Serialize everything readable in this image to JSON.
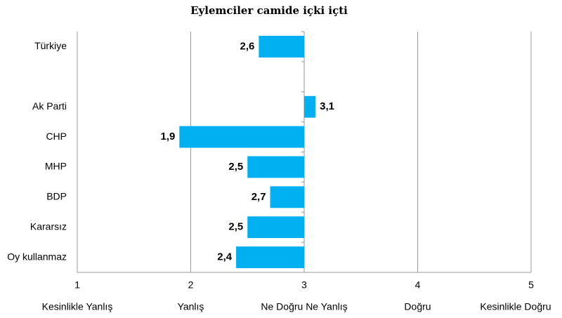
{
  "chart_data": {
    "type": "bar",
    "orientation": "horizontal",
    "title": "Eylemciler camide içki içti",
    "categories": [
      "Türkiye",
      null,
      "Ak Parti",
      "CHP",
      "MHP",
      "BDP",
      "Kararsız",
      "Oy kullanmaz"
    ],
    "values": [
      2.6,
      null,
      3.1,
      1.9,
      2.5,
      2.7,
      2.5,
      2.4
    ],
    "value_labels": [
      "2,6",
      null,
      "3,1",
      "1,9",
      "2,5",
      "2,7",
      "2,5",
      "2,4"
    ],
    "color": "#00b0f0",
    "bar_base": 3,
    "xlim": [
      1,
      5
    ],
    "xticks": [
      1,
      2,
      3,
      4,
      5
    ],
    "scale_labels": [
      "Kesinlikle Yanlış",
      "Yanlış",
      "Ne Doğru Ne Yanlış",
      "Doğru",
      "Kesinlikle Doğru"
    ],
    "grid": true
  }
}
